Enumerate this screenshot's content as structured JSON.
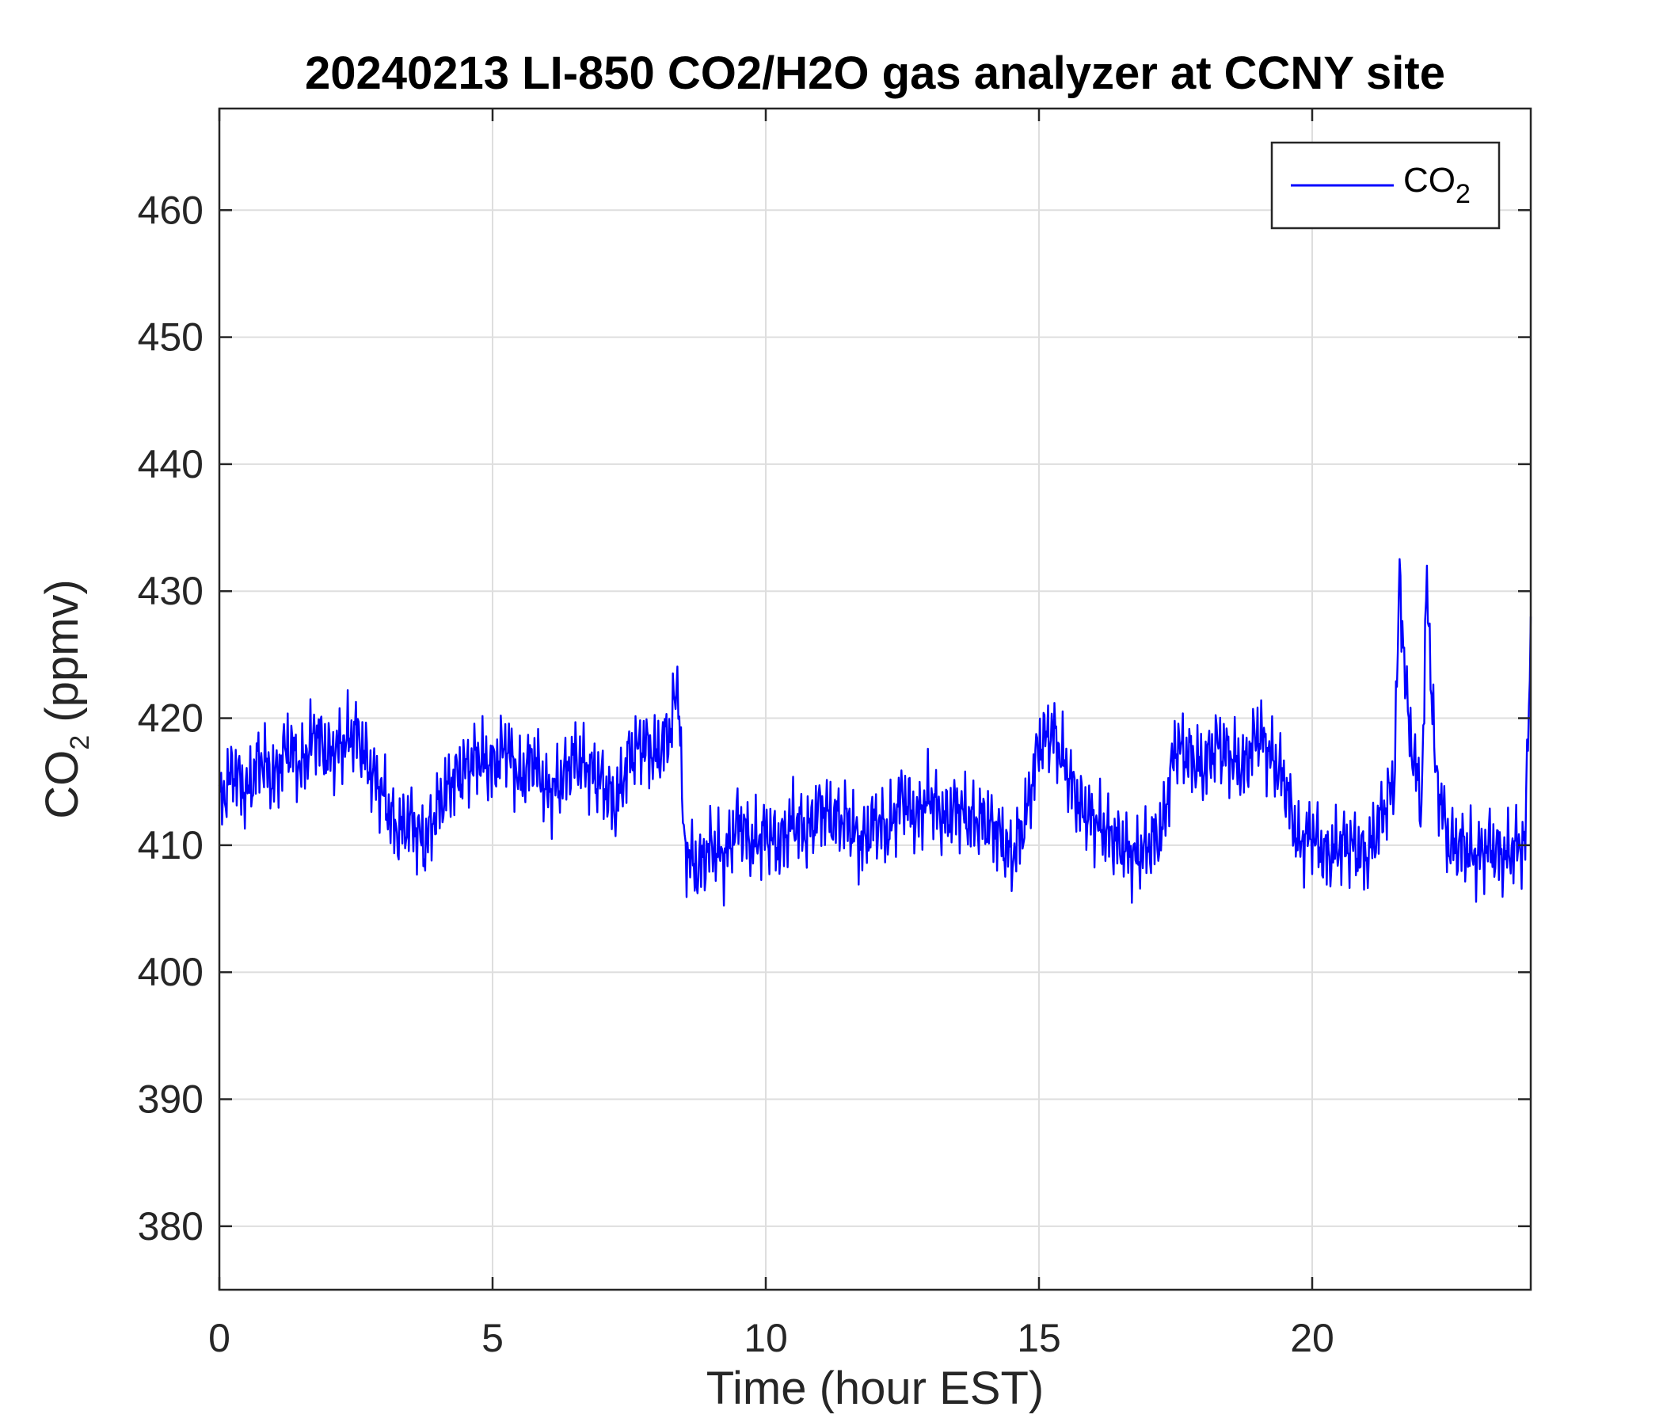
{
  "chart_data": {
    "type": "line",
    "title": "20240213 LI-850 CO2/H2O gas analyzer at CCNY site",
    "xlabel": "Time (hour EST)",
    "ylabel": {
      "base": "CO",
      "sub": "2",
      "rest": " (ppmv)"
    },
    "xlim": [
      0,
      24
    ],
    "ylim": [
      375,
      468
    ],
    "xticks": [
      0,
      5,
      10,
      15,
      20
    ],
    "yticks": [
      380,
      390,
      400,
      410,
      420,
      430,
      440,
      450,
      460
    ],
    "grid": true,
    "legend_position": "top-right",
    "series": [
      {
        "name": {
          "base": "CO",
          "sub": "2"
        },
        "color": "#0000ff",
        "x": [
          0,
          0.25,
          0.5,
          0.75,
          1.0,
          1.25,
          1.5,
          1.75,
          2.0,
          2.25,
          2.5,
          2.75,
          3.0,
          3.25,
          3.5,
          3.75,
          4.0,
          4.25,
          4.5,
          4.75,
          5.0,
          5.25,
          5.5,
          5.75,
          6.0,
          6.25,
          6.5,
          6.75,
          7.0,
          7.25,
          7.5,
          7.75,
          8.0,
          8.25,
          8.4,
          8.5,
          8.75,
          9.0,
          9.25,
          9.5,
          9.75,
          10.0,
          10.25,
          10.5,
          10.75,
          11.0,
          11.25,
          11.5,
          11.75,
          12.0,
          12.25,
          12.5,
          12.75,
          13.0,
          13.25,
          13.5,
          13.75,
          14.0,
          14.25,
          14.5,
          14.75,
          15.0,
          15.25,
          15.5,
          15.75,
          16.0,
          16.25,
          16.5,
          16.75,
          17.0,
          17.25,
          17.5,
          17.75,
          18.0,
          18.25,
          18.5,
          18.75,
          19.0,
          19.25,
          19.5,
          19.75,
          20.0,
          20.25,
          20.5,
          20.75,
          21.0,
          21.25,
          21.5,
          21.6,
          21.75,
          22.0,
          22.1,
          22.25,
          22.5,
          22.75,
          23.0,
          23.25,
          23.5,
          23.75,
          23.9,
          24.0
        ],
        "y": [
          413,
          416,
          414,
          417,
          415,
          418,
          416,
          419,
          417,
          418,
          419,
          416,
          414,
          411,
          412,
          410,
          413,
          415,
          416,
          417,
          416,
          418,
          415,
          417,
          414,
          415,
          417,
          416,
          415,
          413,
          417,
          418,
          417,
          419,
          423,
          410,
          408,
          410,
          409,
          412,
          410,
          411,
          410,
          412,
          411,
          413,
          412,
          412,
          410,
          412,
          411,
          414,
          412,
          414,
          412,
          413,
          412,
          412,
          411,
          409,
          412,
          418,
          419,
          416,
          413,
          412,
          411,
          410,
          409,
          410,
          411,
          418,
          417,
          416,
          418,
          417,
          416,
          419,
          417,
          415,
          410,
          411,
          409,
          410,
          410,
          409,
          412,
          415,
          431,
          420,
          413,
          431,
          416,
          410,
          410,
          409,
          410,
          409,
          410,
          410,
          428
        ]
      }
    ]
  }
}
